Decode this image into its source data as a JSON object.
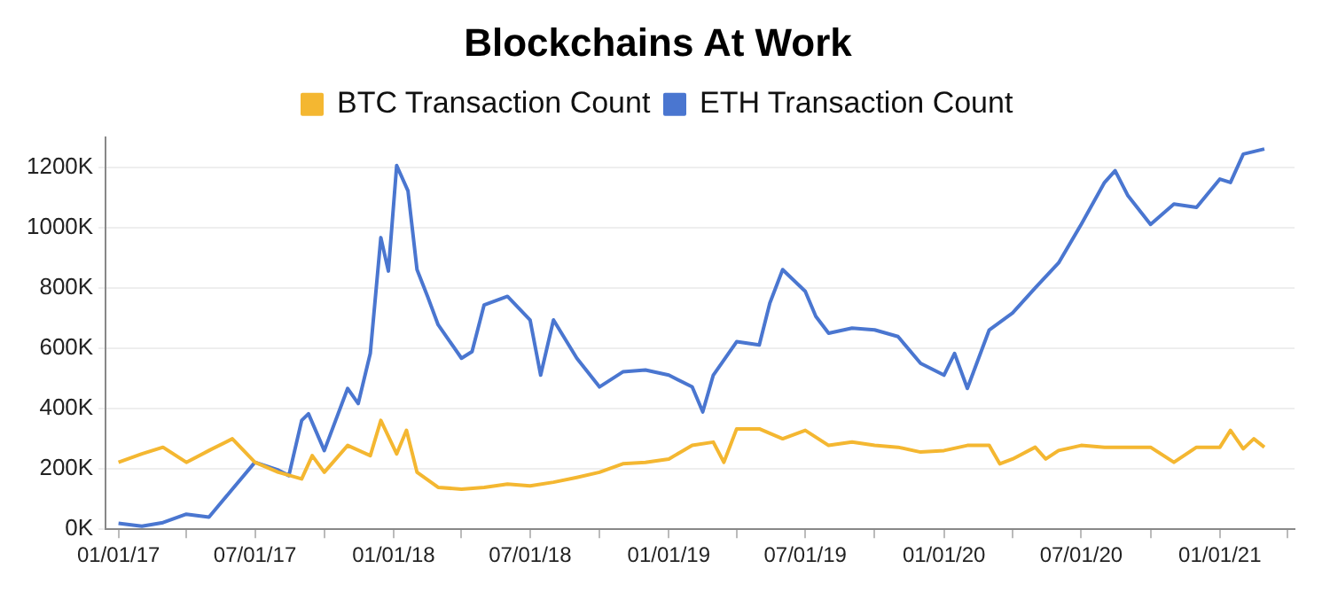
{
  "chart_data": {
    "type": "line",
    "title": "Blockchains At Work",
    "xlim": [
      "2016-12-15",
      "2021-04-10"
    ],
    "xticks": [
      {
        "value": "2017-01-01",
        "label": "01/01/17"
      },
      {
        "value": "2017-04-01",
        "label": null
      },
      {
        "value": "2017-07-01",
        "label": "07/01/17"
      },
      {
        "value": "2017-10-01",
        "label": null
      },
      {
        "value": "2018-01-01",
        "label": "01/01/18"
      },
      {
        "value": "2018-04-01",
        "label": null
      },
      {
        "value": "2018-07-01",
        "label": "07/01/18"
      },
      {
        "value": "2018-10-01",
        "label": null
      },
      {
        "value": "2019-01-01",
        "label": "01/01/19"
      },
      {
        "value": "2019-04-01",
        "label": null
      },
      {
        "value": "2019-07-01",
        "label": "07/01/19"
      },
      {
        "value": "2019-10-01",
        "label": null
      },
      {
        "value": "2020-01-01",
        "label": "01/01/20"
      },
      {
        "value": "2020-04-01",
        "label": null
      },
      {
        "value": "2020-07-01",
        "label": "07/01/20"
      },
      {
        "value": "2020-10-01",
        "label": null
      },
      {
        "value": "2021-01-01",
        "label": "01/01/21"
      },
      {
        "value": "2021-04-01",
        "label": null
      }
    ],
    "ylim": [
      0,
      1300000
    ],
    "yticks": [
      {
        "value": 0,
        "label": "0K"
      },
      {
        "value": 200000,
        "label": "200K"
      },
      {
        "value": 400000,
        "label": "400K"
      },
      {
        "value": 600000,
        "label": "600K"
      },
      {
        "value": 800000,
        "label": "800K"
      },
      {
        "value": 1000000,
        "label": "1000K"
      },
      {
        "value": 1200000,
        "label": "1200K"
      }
    ],
    "grid": "y",
    "legend": "top",
    "marker": "none",
    "line_style": "solid",
    "series": [
      {
        "name": "BTC Transaction Count",
        "color": "#f4b731",
        "x": [
          "2017-01-01",
          "2017-02-01",
          "2017-03-01",
          "2017-04-01",
          "2017-05-01",
          "2017-06-01",
          "2017-07-01",
          "2017-08-01",
          "2017-09-01",
          "2017-09-15",
          "2017-10-01",
          "2017-11-01",
          "2017-12-01",
          "2017-12-15",
          "2018-01-05",
          "2018-01-18",
          "2018-02-01",
          "2018-03-01",
          "2018-04-01",
          "2018-05-01",
          "2018-06-01",
          "2018-07-01",
          "2018-08-01",
          "2018-09-01",
          "2018-10-01",
          "2018-11-01",
          "2018-12-01",
          "2019-01-01",
          "2019-02-01",
          "2019-03-01",
          "2019-03-15",
          "2019-04-01",
          "2019-05-01",
          "2019-06-01",
          "2019-07-01",
          "2019-08-01",
          "2019-09-01",
          "2019-10-01",
          "2019-11-01",
          "2019-12-01",
          "2020-01-01",
          "2020-02-01",
          "2020-03-01",
          "2020-03-15",
          "2020-04-01",
          "2020-05-01",
          "2020-05-15",
          "2020-06-01",
          "2020-07-01",
          "2020-08-01",
          "2020-09-01",
          "2020-10-01",
          "2020-11-01",
          "2020-12-01",
          "2021-01-01",
          "2021-01-15",
          "2021-02-01",
          "2021-02-15",
          "2021-03-01"
        ],
        "values": [
          222000,
          250000,
          272000,
          222000,
          261000,
          300000,
          222000,
          189000,
          167000,
          244000,
          189000,
          278000,
          244000,
          361000,
          250000,
          328000,
          189000,
          139000,
          133000,
          139000,
          150000,
          144000,
          156000,
          172000,
          189000,
          217000,
          222000,
          233000,
          278000,
          289000,
          222000,
          333000,
          333000,
          300000,
          328000,
          278000,
          289000,
          278000,
          272000,
          256000,
          261000,
          278000,
          278000,
          217000,
          233000,
          272000,
          233000,
          261000,
          278000,
          272000,
          272000,
          272000,
          222000,
          272000,
          272000,
          328000,
          267000,
          300000,
          272000
        ]
      },
      {
        "name": "ETH Transaction Count",
        "color": "#4a76d0",
        "x": [
          "2017-01-01",
          "2017-02-01",
          "2017-03-01",
          "2017-04-01",
          "2017-05-01",
          "2017-06-01",
          "2017-07-01",
          "2017-08-01",
          "2017-08-15",
          "2017-09-01",
          "2017-09-10",
          "2017-10-01",
          "2017-11-01",
          "2017-11-15",
          "2017-12-01",
          "2017-12-15",
          "2017-12-25",
          "2018-01-05",
          "2018-01-20",
          "2018-02-01",
          "2018-02-15",
          "2018-03-01",
          "2018-04-01",
          "2018-04-15",
          "2018-05-01",
          "2018-06-01",
          "2018-07-01",
          "2018-07-15",
          "2018-08-01",
          "2018-09-01",
          "2018-10-01",
          "2018-11-01",
          "2018-12-01",
          "2019-01-01",
          "2019-02-01",
          "2019-02-15",
          "2019-03-01",
          "2019-04-01",
          "2019-05-01",
          "2019-05-15",
          "2019-06-01",
          "2019-07-01",
          "2019-07-15",
          "2019-08-01",
          "2019-09-01",
          "2019-10-01",
          "2019-11-01",
          "2019-12-01",
          "2020-01-01",
          "2020-01-15",
          "2020-02-01",
          "2020-03-01",
          "2020-04-01",
          "2020-05-01",
          "2020-06-01",
          "2020-07-01",
          "2020-08-01",
          "2020-08-15",
          "2020-09-01",
          "2020-10-01",
          "2020-11-01",
          "2020-12-01",
          "2021-01-01",
          "2021-01-15",
          "2021-02-01",
          "2021-03-01"
        ],
        "values": [
          20000,
          10000,
          22000,
          50000,
          40000,
          133000,
          222000,
          196000,
          178000,
          361000,
          383000,
          261000,
          467000,
          417000,
          583000,
          967000,
          856000,
          1206000,
          1122000,
          861000,
          772000,
          678000,
          567000,
          589000,
          744000,
          772000,
          694000,
          511000,
          694000,
          567000,
          472000,
          522000,
          528000,
          511000,
          472000,
          389000,
          511000,
          622000,
          611000,
          750000,
          861000,
          789000,
          706000,
          650000,
          667000,
          661000,
          639000,
          550000,
          511000,
          583000,
          467000,
          661000,
          717000,
          800000,
          883000,
          1011000,
          1150000,
          1189000,
          1106000,
          1011000,
          1078000,
          1067000,
          1161000,
          1150000,
          1244000,
          1261000
        ]
      }
    ]
  }
}
